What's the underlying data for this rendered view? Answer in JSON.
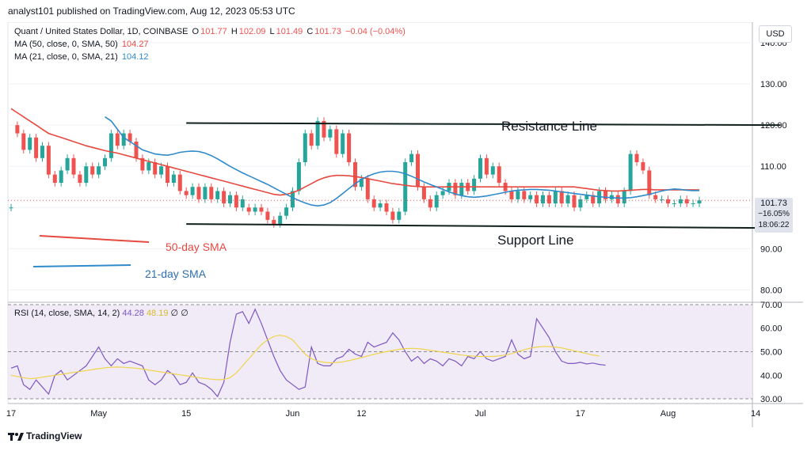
{
  "header": {
    "publisher": "analyst101 published on TradingView.com, Aug 12, 2023 05:53 UTC"
  },
  "legend": {
    "symbol": "Quant / United States Dollar, 1D, COINBASE",
    "open_label": "O",
    "open": "101.77",
    "high_label": "H",
    "high": "102.09",
    "low_label": "L",
    "low": "101.49",
    "close_label": "C",
    "close": "101.73",
    "change": "−0.04 (−0.04%)",
    "ma50_label": "MA (50, close, 0, SMA, 50)",
    "ma50_value": "104.27",
    "ma21_label": "MA (21, close, 0, SMA, 21)",
    "ma21_value": "104.12"
  },
  "currency_button": "USD",
  "price_badge": {
    "price": "101.73",
    "change": "−16.05%",
    "countdown": "18:06:22"
  },
  "annotations": {
    "resistance": "Resistance Line",
    "support": "Support Line",
    "sma50": "50-day SMA",
    "sma21": "21-day SMA"
  },
  "rsi_legend": {
    "label": "RSI (14, close, SMA, 14, 2)",
    "rsi": "44.28",
    "sma": "48.19",
    "sym1": "∅",
    "sym2": "∅"
  },
  "footer": {
    "brand": "TradingView"
  },
  "colors": {
    "up": "#26a69a",
    "down": "#ef5350",
    "ma50": "#e5493f",
    "ma21": "#2f8bcc",
    "rsi": "#7e57c2",
    "rsi_ma": "#f0d44c",
    "trend": "#10201c",
    "band": "#ede7f6"
  },
  "chart_data": {
    "type": "candlestick",
    "price_axis": {
      "ticks": [
        "140.00",
        "130.00",
        "120.00",
        "110.00",
        "100.00",
        "90.00",
        "80.00"
      ],
      "ylim": [
        77,
        145
      ]
    },
    "rsi_axis": {
      "ticks": [
        "70.00",
        "60.00",
        "50.00",
        "40.00",
        "30.00"
      ],
      "ylim": [
        28,
        71
      ],
      "band": [
        30,
        70
      ]
    },
    "x_labels": [
      "17",
      "May",
      "15",
      "Jun",
      "12",
      "Jul",
      "17",
      "Aug",
      "14"
    ],
    "x_label_days": [
      0,
      14,
      28,
      45,
      56,
      75,
      91,
      105,
      119
    ],
    "candles": [
      [
        100,
        100
      ],
      [
        120,
        118
      ],
      [
        118,
        114
      ],
      [
        114,
        117
      ],
      [
        117,
        112
      ],
      [
        112,
        115
      ],
      [
        115,
        108
      ],
      [
        108,
        106
      ],
      [
        106,
        109
      ],
      [
        109,
        112
      ],
      [
        112,
        108
      ],
      [
        108,
        106
      ],
      [
        106,
        110
      ],
      [
        110,
        108
      ],
      [
        108,
        110
      ],
      [
        110,
        112
      ],
      [
        112,
        118
      ],
      [
        118,
        115
      ],
      [
        115,
        118
      ],
      [
        118,
        116
      ],
      [
        116,
        112
      ],
      [
        112,
        109
      ],
      [
        109,
        111
      ],
      [
        111,
        108
      ],
      [
        108,
        110
      ],
      [
        110,
        106
      ],
      [
        106,
        108
      ],
      [
        108,
        104
      ],
      [
        104,
        103
      ],
      [
        103,
        105
      ],
      [
        105,
        102
      ],
      [
        102,
        105
      ],
      [
        105,
        102
      ],
      [
        102,
        104
      ],
      [
        104,
        101
      ],
      [
        101,
        103
      ],
      [
        103,
        100
      ],
      [
        100,
        102
      ],
      [
        100,
        99
      ],
      [
        99,
        100
      ],
      [
        100,
        99
      ],
      [
        99,
        97
      ],
      [
        97,
        96
      ],
      [
        96,
        98
      ],
      [
        98,
        100
      ],
      [
        100,
        104
      ],
      [
        104,
        111
      ],
      [
        111,
        118
      ],
      [
        118,
        115
      ],
      [
        115,
        121
      ],
      [
        121,
        117
      ],
      [
        117,
        119
      ],
      [
        119,
        113
      ],
      [
        113,
        118
      ],
      [
        118,
        111
      ],
      [
        111,
        105
      ],
      [
        105,
        107
      ],
      [
        107,
        102
      ],
      [
        102,
        100
      ],
      [
        100,
        101
      ],
      [
        101,
        99
      ],
      [
        99,
        97
      ],
      [
        97,
        99
      ],
      [
        99,
        111
      ],
      [
        111,
        113
      ],
      [
        113,
        105
      ],
      [
        105,
        102
      ],
      [
        102,
        100
      ],
      [
        100,
        103
      ],
      [
        103,
        104
      ],
      [
        104,
        106
      ],
      [
        106,
        103
      ],
      [
        103,
        106
      ],
      [
        106,
        104
      ],
      [
        104,
        107
      ],
      [
        107,
        112
      ],
      [
        112,
        108
      ],
      [
        108,
        110
      ],
      [
        110,
        106
      ],
      [
        106,
        104
      ],
      [
        104,
        102
      ],
      [
        102,
        104
      ],
      [
        104,
        102
      ],
      [
        102,
        103
      ],
      [
        103,
        101
      ],
      [
        101,
        103
      ],
      [
        103,
        101
      ],
      [
        101,
        104
      ],
      [
        104,
        101
      ],
      [
        101,
        103
      ],
      [
        103,
        100
      ],
      [
        100,
        102
      ],
      [
        102,
        103
      ],
      [
        103,
        101
      ],
      [
        101,
        104
      ],
      [
        104,
        102
      ],
      [
        102,
        103
      ],
      [
        103,
        101
      ],
      [
        101,
        104
      ],
      [
        104,
        113
      ],
      [
        113,
        111
      ],
      [
        111,
        109
      ],
      [
        109,
        103
      ],
      [
        103,
        102
      ],
      [
        102,
        102
      ],
      [
        102,
        101
      ],
      [
        101,
        101
      ],
      [
        101,
        102
      ],
      [
        102,
        101
      ],
      [
        101,
        101
      ],
      [
        101,
        101.73
      ]
    ],
    "ma50": [
      124,
      123,
      122,
      121,
      120,
      119,
      118,
      117.5,
      117,
      116.5,
      116,
      115.5,
      115,
      114.6,
      114.2,
      113.8,
      113.5,
      113.2,
      112.8,
      112.4,
      112,
      111.6,
      111.2,
      110.8,
      110.4,
      110,
      109.6,
      109.2,
      108.8,
      108.4,
      108,
      107.6,
      107.2,
      106.8,
      106.4,
      106,
      105.6,
      105.2,
      104.8,
      104.4,
      104,
      103.6,
      103.2,
      103,
      103.2,
      103.6,
      104.2,
      105,
      105.8,
      106.6,
      107.2,
      107.6,
      107.8,
      107.8,
      107.7,
      107.5,
      107.3,
      107,
      106.7,
      106.4,
      106.1,
      105.8,
      105.6,
      105.4,
      105.2,
      105.1,
      105,
      105,
      105,
      105,
      105,
      105,
      105,
      105,
      105,
      105,
      105,
      105,
      105,
      105,
      105,
      105,
      105,
      105,
      105,
      105,
      105,
      105,
      105,
      105,
      105,
      104.8,
      104.6,
      104.4,
      104.2,
      104.1,
      104,
      104,
      104.1,
      104.2,
      104.3,
      104.4,
      104.4,
      104.3,
      104.3,
      104.3,
      104.3,
      104.3,
      104.3,
      104.3,
      104.27
    ],
    "ma21": [
      122,
      121,
      119,
      117,
      116,
      115,
      114,
      113.5,
      113,
      112.8,
      112.7,
      113,
      113.4,
      113.6,
      113.7,
      113.6,
      113.2,
      112.6,
      111.8,
      110.9,
      110,
      109.2,
      108.4,
      107.7,
      107,
      106.3,
      105.6,
      104.8,
      104,
      103.2,
      102.4,
      101.7,
      101.1,
      100.6,
      100.4,
      100.6,
      101.2,
      102.2,
      103.4,
      104.6,
      105.8,
      106.8,
      107.6,
      108.2,
      108.6,
      108.8,
      108.8,
      108.6,
      108.2,
      107.6,
      106.9,
      106.2,
      105.6,
      105,
      104.4,
      103.8,
      103.3,
      102.9,
      102.6,
      102.5,
      102.6,
      102.8,
      103.1,
      103.4,
      103.7,
      104,
      104.2,
      104.3,
      104.4,
      104.4,
      104.3,
      104.2,
      104,
      103.8,
      103.6,
      103.4,
      103.2,
      103,
      102.8,
      102.6,
      102.5,
      102.4,
      102.3,
      102.3,
      102.4,
      102.6,
      102.9,
      103.2,
      103.6,
      104,
      104.3,
      104.5,
      104.4,
      104.2,
      104.1,
      104.12
    ],
    "rsi": [
      43,
      44,
      36,
      34,
      38,
      35,
      32,
      40,
      42,
      38,
      40,
      42,
      44,
      48,
      52,
      47,
      44,
      47,
      45,
      46,
      45,
      44,
      38,
      36,
      38,
      42,
      40,
      36,
      37,
      41,
      37,
      36,
      34,
      31,
      37,
      54,
      66,
      67,
      62,
      68,
      62,
      55,
      48,
      42,
      38,
      36,
      34,
      35,
      52,
      45,
      44,
      44,
      47,
      48,
      51,
      49,
      48,
      54,
      52,
      53,
      54,
      58,
      55,
      50,
      46,
      48,
      45,
      47,
      46,
      44,
      47,
      46,
      44,
      48,
      47,
      50,
      47,
      46,
      47,
      48,
      55,
      49,
      47,
      48,
      64,
      60,
      56,
      50,
      46,
      45,
      45,
      45.5,
      44.8,
      45.2,
      44.6,
      44.28
    ],
    "rsi_ma": [
      40,
      39.5,
      39,
      38.5,
      38.8,
      39.2,
      39.6,
      40,
      40.4,
      40.8,
      41.2,
      41.6,
      42,
      42.4,
      42.8,
      43.2,
      43.4,
      43.5,
      43.4,
      43.2,
      43,
      42.6,
      42.2,
      41.8,
      41.4,
      41,
      40.6,
      40.2,
      39.8,
      39.4,
      39,
      38.6,
      38.3,
      38.1,
      38.2,
      39,
      41,
      44,
      47,
      50,
      53,
      55,
      56.5,
      57,
      56.5,
      55,
      52,
      49,
      47,
      46,
      45.5,
      45.3,
      45.4,
      45.7,
      46.2,
      46.8,
      47.5,
      48.2,
      48.9,
      49.5,
      50,
      50.5,
      51,
      51.3,
      51.4,
      51.3,
      51,
      50.6,
      50.2,
      49.8,
      49.4,
      49,
      48.6,
      48.3,
      48.1,
      48,
      48,
      48,
      48.2,
      48.6,
      49.2,
      50,
      50.8,
      51.5,
      52,
      52.2,
      52.2,
      52,
      51.6,
      51,
      50.4,
      49.8,
      49.2,
      48.6,
      48.19
    ],
    "last_price": 101.73,
    "resistance_line": [
      [
        28,
        120.5
      ],
      [
        123,
        120
      ]
    ],
    "support_line": [
      [
        28,
        96
      ],
      [
        123,
        95
      ]
    ]
  }
}
